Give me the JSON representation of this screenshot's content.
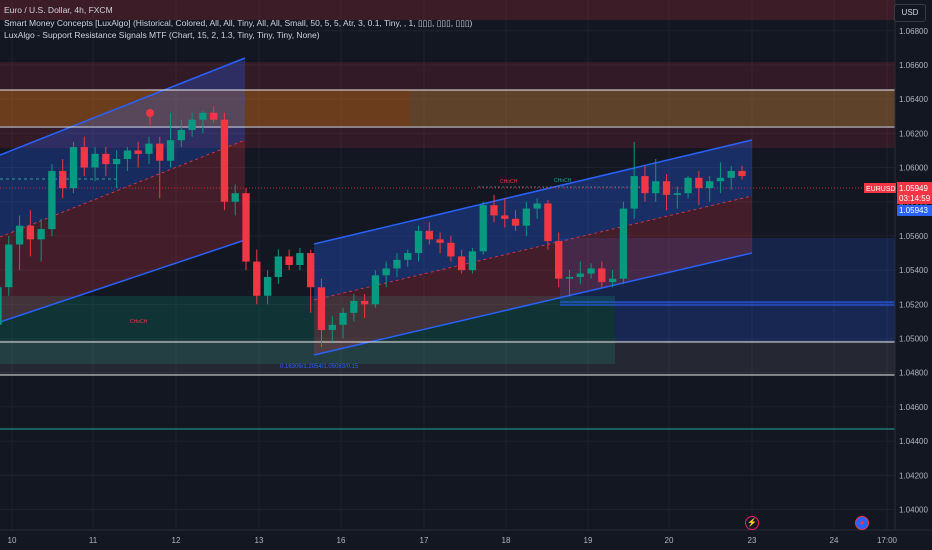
{
  "header": {
    "symbol_line": "Euro / U.S. Dollar, 4h, FXCM",
    "indicator_1": "Smart Money Concepts [LuxAlgo] (Historical, Colored, All, All, Tiny, All, All, Small, 50, 5, 5, Atr, 3, 0.1, Tiny, , 1, ▯▯▯, ▯▯▯, ▯▯▯)",
    "indicator_2": "LuxAlgo - Support Resistance Signals MTF (Chart, 15, 2, 1.3, Tiny, Tiny, Tiny, None)"
  },
  "currency_button": "USD",
  "price_labels": {
    "symbol_tag": "EURUSD",
    "last_price": "1.05949",
    "countdown": "03:14:59",
    "second_price": "1.05943"
  },
  "annotations": {
    "choch_left": "CHoCH",
    "choch_mid": "CHoCH",
    "choch_peak": "CHoCH",
    "fib_note": "0.16306/1.2054/1.05083/0.15"
  },
  "colors": {
    "background": "#131722",
    "bull": "#089981",
    "bear": "#f23645",
    "channel_line": "#2962ff"
  },
  "chart_data": {
    "type": "candlestick",
    "y_ticks": [
      "1.06800",
      "1.06600",
      "1.06400",
      "1.06200",
      "1.06000",
      "1.05800",
      "1.05600",
      "1.05400",
      "1.05200",
      "1.05000",
      "1.04800",
      "1.04600",
      "1.04400",
      "1.04200",
      "1.04000"
    ],
    "x_ticks": [
      "10",
      "11",
      "12",
      "13",
      "16",
      "17",
      "18",
      "19",
      "20",
      "23",
      "24",
      "17:00"
    ],
    "ylim": [
      1.0388,
      1.0698
    ],
    "candles": [
      {
        "o": 1.0508,
        "h": 1.0535,
        "l": 1.0495,
        "c": 1.053
      },
      {
        "o": 1.053,
        "h": 1.056,
        "l": 1.0525,
        "c": 1.0555
      },
      {
        "o": 1.0555,
        "h": 1.0572,
        "l": 1.054,
        "c": 1.0566
      },
      {
        "o": 1.0566,
        "h": 1.0575,
        "l": 1.0548,
        "c": 1.0558
      },
      {
        "o": 1.0558,
        "h": 1.057,
        "l": 1.0545,
        "c": 1.0564
      },
      {
        "o": 1.0564,
        "h": 1.0602,
        "l": 1.056,
        "c": 1.0598
      },
      {
        "o": 1.0598,
        "h": 1.0605,
        "l": 1.0582,
        "c": 1.0588
      },
      {
        "o": 1.0588,
        "h": 1.0615,
        "l": 1.0585,
        "c": 1.0612
      },
      {
        "o": 1.0612,
        "h": 1.0618,
        "l": 1.0595,
        "c": 1.06
      },
      {
        "o": 1.06,
        "h": 1.0612,
        "l": 1.0592,
        "c": 1.0608
      },
      {
        "o": 1.0608,
        "h": 1.0612,
        "l": 1.0595,
        "c": 1.0602
      },
      {
        "o": 1.0602,
        "h": 1.061,
        "l": 1.0588,
        "c": 1.0605
      },
      {
        "o": 1.0605,
        "h": 1.0612,
        "l": 1.0598,
        "c": 1.061
      },
      {
        "o": 1.061,
        "h": 1.0615,
        "l": 1.06,
        "c": 1.0608
      },
      {
        "o": 1.0608,
        "h": 1.0618,
        "l": 1.0602,
        "c": 1.0614
      },
      {
        "o": 1.0614,
        "h": 1.0618,
        "l": 1.0582,
        "c": 1.0604
      },
      {
        "o": 1.0604,
        "h": 1.0632,
        "l": 1.06,
        "c": 1.0616
      },
      {
        "o": 1.0616,
        "h": 1.0628,
        "l": 1.0612,
        "c": 1.0622
      },
      {
        "o": 1.0622,
        "h": 1.0632,
        "l": 1.0618,
        "c": 1.0628
      },
      {
        "o": 1.0628,
        "h": 1.0633,
        "l": 1.062,
        "c": 1.0632
      },
      {
        "o": 1.0632,
        "h": 1.0636,
        "l": 1.0626,
        "c": 1.0628
      },
      {
        "o": 1.0628,
        "h": 1.0632,
        "l": 1.0575,
        "c": 1.058
      },
      {
        "o": 1.058,
        "h": 1.059,
        "l": 1.0572,
        "c": 1.0585
      },
      {
        "o": 1.0585,
        "h": 1.0588,
        "l": 1.054,
        "c": 1.0545
      },
      {
        "o": 1.0545,
        "h": 1.0552,
        "l": 1.052,
        "c": 1.0525
      },
      {
        "o": 1.0525,
        "h": 1.054,
        "l": 1.052,
        "c": 1.0536
      },
      {
        "o": 1.0536,
        "h": 1.0552,
        "l": 1.0532,
        "c": 1.0548
      },
      {
        "o": 1.0548,
        "h": 1.0552,
        "l": 1.054,
        "c": 1.0543
      },
      {
        "o": 1.0543,
        "h": 1.0553,
        "l": 1.054,
        "c": 1.055
      },
      {
        "o": 1.055,
        "h": 1.0552,
        "l": 1.0515,
        "c": 1.053
      },
      {
        "o": 1.053,
        "h": 1.0535,
        "l": 1.0495,
        "c": 1.0505
      },
      {
        "o": 1.0505,
        "h": 1.0513,
        "l": 1.0498,
        "c": 1.0508
      },
      {
        "o": 1.0508,
        "h": 1.0518,
        "l": 1.05,
        "c": 1.0515
      },
      {
        "o": 1.0515,
        "h": 1.0526,
        "l": 1.051,
        "c": 1.0522
      },
      {
        "o": 1.0522,
        "h": 1.0526,
        "l": 1.0512,
        "c": 1.052
      },
      {
        "o": 1.052,
        "h": 1.054,
        "l": 1.0518,
        "c": 1.0537
      },
      {
        "o": 1.0537,
        "h": 1.0545,
        "l": 1.053,
        "c": 1.0541
      },
      {
        "o": 1.0541,
        "h": 1.055,
        "l": 1.0536,
        "c": 1.0546
      },
      {
        "o": 1.0546,
        "h": 1.0552,
        "l": 1.0542,
        "c": 1.055
      },
      {
        "o": 1.055,
        "h": 1.0566,
        "l": 1.0545,
        "c": 1.0563
      },
      {
        "o": 1.0563,
        "h": 1.0568,
        "l": 1.0555,
        "c": 1.0558
      },
      {
        "o": 1.0558,
        "h": 1.0562,
        "l": 1.055,
        "c": 1.0556
      },
      {
        "o": 1.0556,
        "h": 1.056,
        "l": 1.0545,
        "c": 1.0548
      },
      {
        "o": 1.0548,
        "h": 1.0552,
        "l": 1.0538,
        "c": 1.054
      },
      {
        "o": 1.054,
        "h": 1.0553,
        "l": 1.0538,
        "c": 1.0551
      },
      {
        "o": 1.0551,
        "h": 1.058,
        "l": 1.0549,
        "c": 1.0578
      },
      {
        "o": 1.0578,
        "h": 1.0584,
        "l": 1.0568,
        "c": 1.0572
      },
      {
        "o": 1.0572,
        "h": 1.0582,
        "l": 1.0565,
        "c": 1.057
      },
      {
        "o": 1.057,
        "h": 1.0575,
        "l": 1.0563,
        "c": 1.0566
      },
      {
        "o": 1.0566,
        "h": 1.058,
        "l": 1.056,
        "c": 1.0576
      },
      {
        "o": 1.0576,
        "h": 1.0582,
        "l": 1.057,
        "c": 1.0579
      },
      {
        "o": 1.0579,
        "h": 1.0581,
        "l": 1.0552,
        "c": 1.0557
      },
      {
        "o": 1.0557,
        "h": 1.0562,
        "l": 1.053,
        "c": 1.0535
      },
      {
        "o": 1.0535,
        "h": 1.054,
        "l": 1.0525,
        "c": 1.0536
      },
      {
        "o": 1.0536,
        "h": 1.0545,
        "l": 1.0532,
        "c": 1.0538
      },
      {
        "o": 1.0538,
        "h": 1.0544,
        "l": 1.0535,
        "c": 1.0541
      },
      {
        "o": 1.0541,
        "h": 1.0545,
        "l": 1.053,
        "c": 1.0533
      },
      {
        "o": 1.0533,
        "h": 1.054,
        "l": 1.053,
        "c": 1.0535
      },
      {
        "o": 1.0535,
        "h": 1.058,
        "l": 1.0532,
        "c": 1.0576
      },
      {
        "o": 1.0576,
        "h": 1.0615,
        "l": 1.057,
        "c": 1.0595
      },
      {
        "o": 1.0595,
        "h": 1.0601,
        "l": 1.058,
        "c": 1.0585
      },
      {
        "o": 1.0585,
        "h": 1.0605,
        "l": 1.058,
        "c": 1.0592
      },
      {
        "o": 1.0592,
        "h": 1.0596,
        "l": 1.0575,
        "c": 1.0584
      },
      {
        "o": 1.0584,
        "h": 1.0589,
        "l": 1.0576,
        "c": 1.0585
      },
      {
        "o": 1.0585,
        "h": 1.0595,
        "l": 1.0582,
        "c": 1.0594
      },
      {
        "o": 1.0594,
        "h": 1.0598,
        "l": 1.0578,
        "c": 1.0588
      },
      {
        "o": 1.0588,
        "h": 1.0595,
        "l": 1.058,
        "c": 1.0592
      },
      {
        "o": 1.0592,
        "h": 1.0603,
        "l": 1.0585,
        "c": 1.0594
      },
      {
        "o": 1.0594,
        "h": 1.0601,
        "l": 1.0587,
        "c": 1.0598
      },
      {
        "o": 1.0598,
        "h": 1.0601,
        "l": 1.0593,
        "c": 1.0595
      }
    ]
  }
}
